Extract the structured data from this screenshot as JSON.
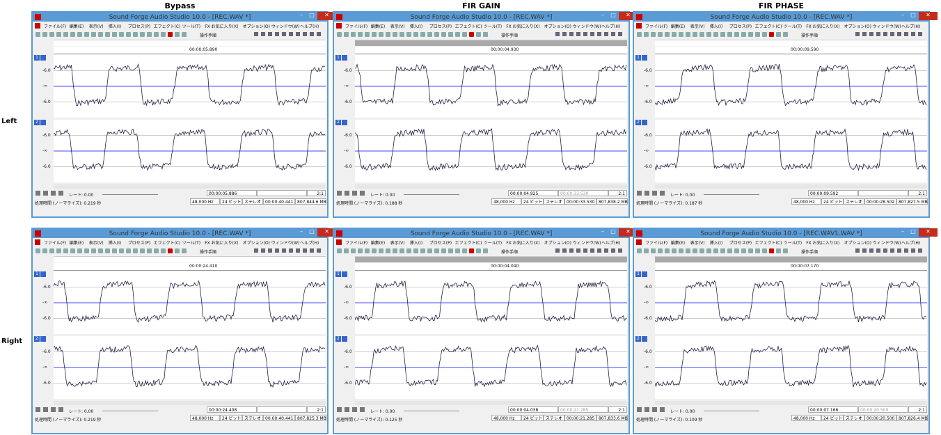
{
  "columns": [
    "Bypass",
    "FIR GAIN",
    "FIR PHASE"
  ],
  "rows": [
    "Left",
    "Right"
  ],
  "menu": [
    "ファイル(F)",
    "編集(E)",
    "表示(V)",
    "挿入(I)",
    "プロセス(P)",
    "エフェクト(C)",
    "ツール(T)",
    "FX お気に入り(X)",
    "オプション(O)",
    "ウィンドウ(W)",
    "ヘルプ(H)"
  ],
  "toolbar_label": "操作手順",
  "channels": [
    "1",
    "2"
  ],
  "level_labels": [
    "-6.0",
    "-∞",
    "-6.0"
  ],
  "rate": "レート: 0.00",
  "zoom": "2:1",
  "bits": "24 ビット",
  "mode": "ステレオ",
  "windows": [
    {
      "title": "Sound Forge Audio Studio 10.0 - [REC.WAV *]",
      "ruler": "00:00:05.890",
      "position": "00:00:05.886",
      "selection": "",
      "length": "00:00:40.441",
      "sample_rate": "48,000 Hz",
      "size": "807,844.6 MB",
      "processing": "処理時間 (ノーマライズ): 0.219 秒"
    },
    {
      "title": "Sound Forge Audio Studio 10.0 - [REC.WAV *]",
      "ruler": "00:00:04.930",
      "position": "00:00:04.925",
      "selection": "00:00:33.530",
      "length": "00:00:33.530",
      "sample_rate": "48,000 Hz",
      "size": "807,838.2 MB",
      "processing": "処理時間 (ノーマライズ): 0.188 秒"
    },
    {
      "title": "Sound Forge Audio Studio 10.0 - [REC.WAV *]",
      "ruler": "00:00:09.590",
      "position": "00:00:09.592",
      "selection": "",
      "length": "00:00:28.502",
      "sample_rate": "48,000 Hz",
      "size": "807,827.5 MB",
      "processing": "処理時間 (ノーマライズ): 0.187 秒"
    },
    {
      "title": "Sound Forge Audio Studio 10.0 - [REC.WAV *]",
      "ruler": "00:00:24.410",
      "position": "00:00:24.408",
      "selection": "",
      "length": "00:00:40.441",
      "sample_rate": "48,000 Hz",
      "size": "807,825.3 MB",
      "processing": "処理時間 (ノーマライズ): 0.219 秒"
    },
    {
      "title": "Sound Forge Audio Studio 10.0 - [REC.WAV *]",
      "ruler": "00:00:04.040",
      "position": "00:00:04.038",
      "selection": "00:00:21.285",
      "length": "00:00:21.285",
      "sample_rate": "48,000 Hz",
      "size": "807,833.6 MB",
      "processing": "処理時間 (ノーマライズ): 0.125 秒"
    },
    {
      "title": "Sound Forge Audio Studio 10.0 - [REC.WAV1.WAV *]",
      "ruler": "00:00:07.170",
      "position": "00:00:07.166",
      "selection": "00:00:20.500",
      "length": "00:00:20.500",
      "sample_rate": "48,000 Hz",
      "size": "807,826.4 MB",
      "processing": "処理時間 (ノーマライズ): 0.109 秒"
    }
  ]
}
